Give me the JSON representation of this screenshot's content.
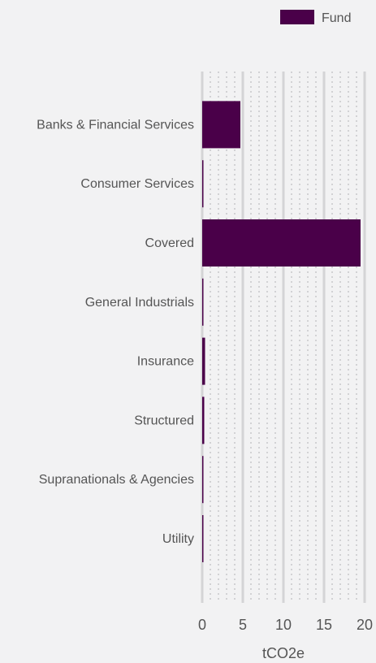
{
  "chart_data": {
    "type": "bar",
    "orientation": "horizontal",
    "categories": [
      "Banks & Financial Services",
      "Consumer Services",
      "Covered",
      "General Industrials",
      "Insurance",
      "Structured",
      "Supranationals & Agencies",
      "Utility"
    ],
    "series": [
      {
        "name": "Fund",
        "color": "#4a0049",
        "values": [
          4.7,
          0.1,
          19.5,
          0.1,
          0.35,
          0.25,
          0.05,
          0.15
        ]
      }
    ],
    "xlabel": "tCO2e",
    "xlim": [
      0,
      20
    ],
    "xticks": [
      "0",
      "5",
      "10",
      "15",
      "20"
    ],
    "grid": true,
    "legend_position": "top-right"
  }
}
